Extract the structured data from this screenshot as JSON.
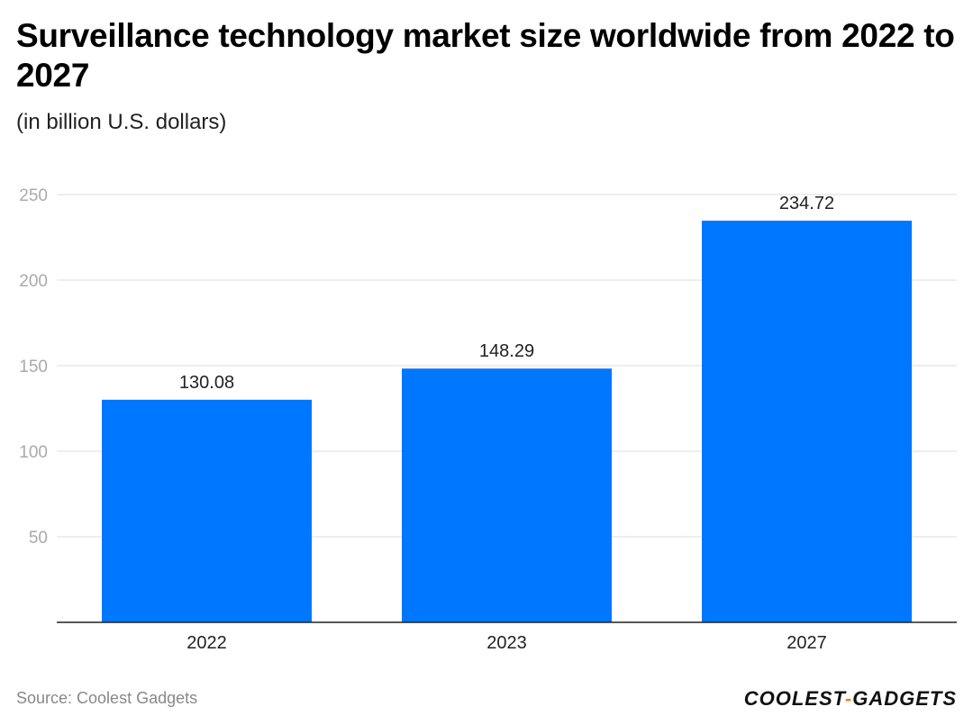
{
  "header": {
    "title": "Surveillance technology market size worldwide from 2022 to 2027",
    "subtitle": "(in billion U.S. dollars)"
  },
  "footer": {
    "source": "Source: Coolest Gadgets",
    "brand_left": "COOLEST",
    "brand_sep": "-",
    "brand_right": "GADGETS"
  },
  "colors": {
    "bar": "#0077ff",
    "grid": "#dddddd",
    "axis": "#222222",
    "tick_label": "#aaaaaa",
    "brand_accent": "#ff7a1a"
  },
  "chart_data": {
    "type": "bar",
    "title": "Surveillance technology market size worldwide from 2022 to 2027",
    "subtitle": "(in billion U.S. dollars)",
    "categories": [
      "2022",
      "2023",
      "2027"
    ],
    "values": [
      130.08,
      148.29,
      234.72
    ],
    "value_labels": [
      "130.08",
      "148.29",
      "234.72"
    ],
    "yticks": [
      50,
      100,
      150,
      200,
      250
    ],
    "ylim": [
      0,
      250
    ],
    "grid": true,
    "legend": "none"
  }
}
